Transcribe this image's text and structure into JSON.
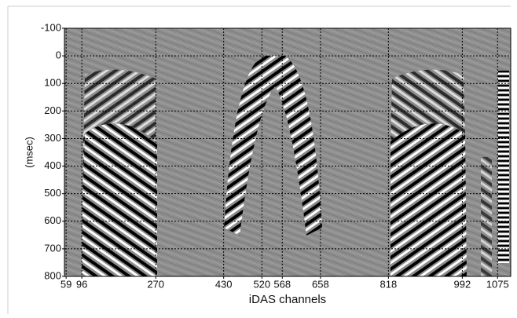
{
  "chart_data": {
    "type": "image",
    "xlabel": "iDAS channels",
    "ylabel": "(msec)",
    "xlim": [
      55,
      1106
    ],
    "xticks": [
      59,
      96,
      270,
      430,
      520,
      568,
      658,
      818,
      992,
      1075
    ],
    "ylim": [
      -100,
      800
    ],
    "y_inverted": true,
    "yticks": [
      -100,
      0,
      100,
      200,
      300,
      400,
      500,
      600,
      700,
      800
    ],
    "grid": true
  }
}
